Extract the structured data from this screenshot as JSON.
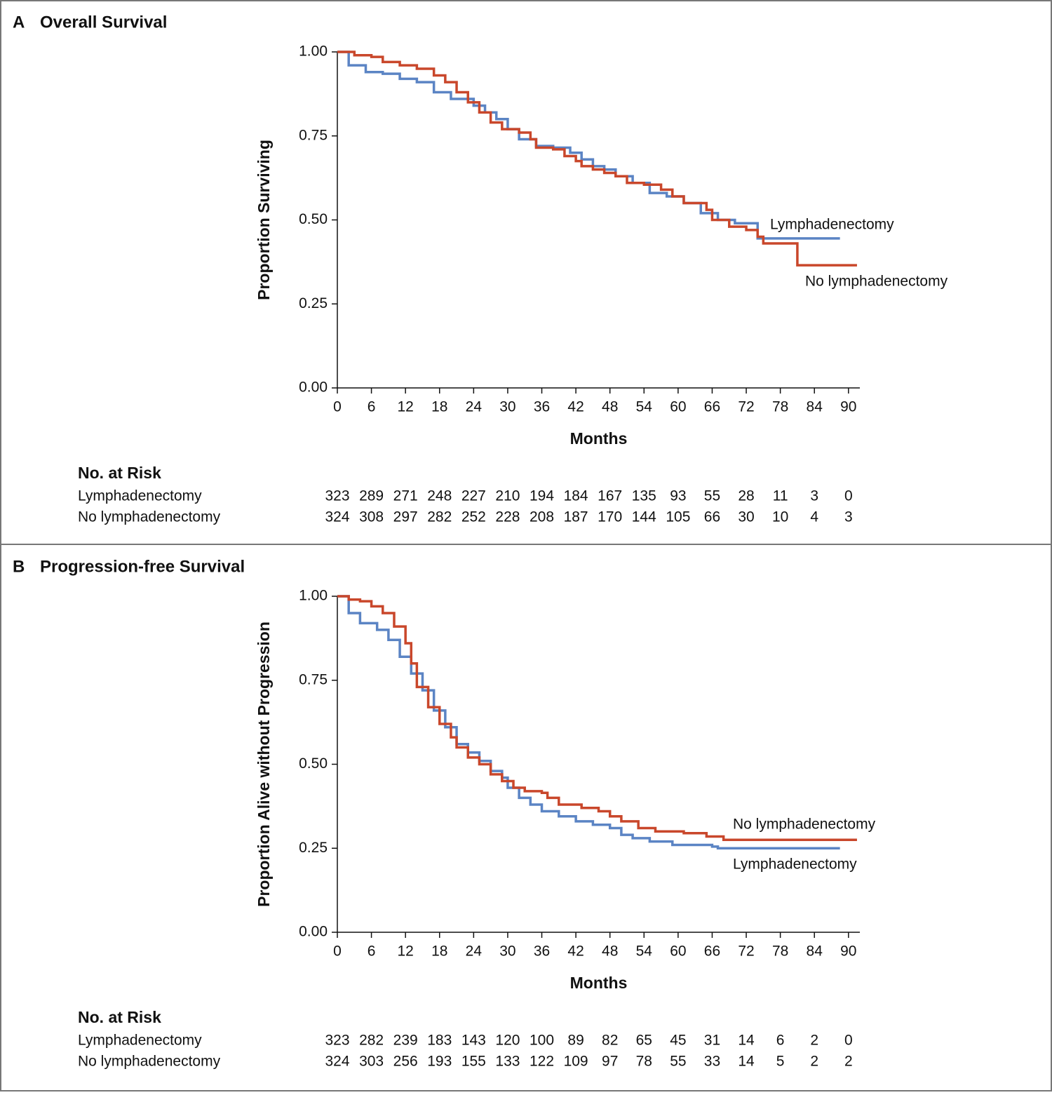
{
  "chart_data": [
    {
      "type": "line",
      "panel_label": "A",
      "title": "Overall Survival",
      "xlabel": "Months",
      "ylabel": "Proportion Surviving",
      "xlim": [
        0,
        92
      ],
      "ylim": [
        0,
        1
      ],
      "xticks": [
        0,
        6,
        12,
        18,
        24,
        30,
        36,
        42,
        48,
        54,
        60,
        66,
        72,
        78,
        84,
        90
      ],
      "yticks": [
        {
          "value": 0,
          "label": "0.00"
        },
        {
          "value": 0.25,
          "label": "0.25"
        },
        {
          "value": 0.5,
          "label": "0.50"
        },
        {
          "value": 0.75,
          "label": "0.75"
        },
        {
          "value": 1,
          "label": "1.00"
        }
      ],
      "series": [
        {
          "name": "Lymphadenectomy",
          "color": "#5b84c4",
          "x": [
            0,
            2,
            5,
            8,
            11,
            14,
            17,
            20,
            24,
            26,
            28,
            30,
            32,
            35,
            38,
            41,
            43,
            45,
            47,
            49,
            52,
            55,
            58,
            61,
            64,
            67,
            70,
            74,
            88.5
          ],
          "values": [
            1,
            0.96,
            0.94,
            0.935,
            0.92,
            0.91,
            0.88,
            0.86,
            0.84,
            0.82,
            0.8,
            0.77,
            0.74,
            0.72,
            0.715,
            0.7,
            0.68,
            0.66,
            0.65,
            0.63,
            0.61,
            0.58,
            0.57,
            0.55,
            0.52,
            0.5,
            0.49,
            0.445,
            0.445
          ]
        },
        {
          "name": "No lymphadenectomy",
          "color": "#c9472b",
          "x": [
            0,
            3,
            6,
            8,
            11,
            14,
            17,
            19,
            21,
            23,
            25,
            27,
            29,
            32,
            34,
            35,
            38,
            40,
            42,
            43,
            45,
            47,
            49,
            51,
            54,
            57,
            59,
            61,
            65,
            66,
            69,
            72,
            74,
            75,
            81,
            91.5
          ],
          "values": [
            1,
            0.99,
            0.985,
            0.97,
            0.96,
            0.95,
            0.93,
            0.91,
            0.88,
            0.85,
            0.82,
            0.79,
            0.77,
            0.76,
            0.74,
            0.715,
            0.71,
            0.69,
            0.675,
            0.66,
            0.65,
            0.64,
            0.63,
            0.61,
            0.605,
            0.59,
            0.57,
            0.55,
            0.53,
            0.5,
            0.48,
            0.47,
            0.45,
            0.43,
            0.365,
            0.365
          ]
        }
      ],
      "risk_table": {
        "title": "No. at Risk",
        "rows": [
          {
            "name": "Lymphadenectomy",
            "values": [
              323,
              289,
              271,
              248,
              227,
              210,
              194,
              184,
              167,
              135,
              93,
              55,
              28,
              11,
              3,
              0
            ]
          },
          {
            "name": "No lymphadenectomy",
            "values": [
              324,
              308,
              297,
              282,
              252,
              228,
              208,
              187,
              170,
              144,
              105,
              66,
              30,
              10,
              4,
              3
            ]
          }
        ]
      }
    },
    {
      "type": "line",
      "panel_label": "B",
      "title": "Progression-free Survival",
      "xlabel": "Months",
      "ylabel": "Proportion Alive without Progression",
      "xlim": [
        0,
        92
      ],
      "ylim": [
        0,
        1
      ],
      "xticks": [
        0,
        6,
        12,
        18,
        24,
        30,
        36,
        42,
        48,
        54,
        60,
        66,
        72,
        78,
        84,
        90
      ],
      "yticks": [
        {
          "value": 0,
          "label": "0.00"
        },
        {
          "value": 0.25,
          "label": "0.25"
        },
        {
          "value": 0.5,
          "label": "0.50"
        },
        {
          "value": 0.75,
          "label": "0.75"
        },
        {
          "value": 1,
          "label": "1.00"
        }
      ],
      "series": [
        {
          "name": "Lymphadenectomy",
          "color": "#5b84c4",
          "x": [
            0,
            2,
            4,
            7,
            9,
            11,
            13,
            15,
            17,
            19,
            21,
            23,
            25,
            27,
            29,
            30,
            32,
            34,
            36,
            39,
            42,
            45,
            48,
            50,
            52,
            55,
            59,
            66,
            67,
            88.5
          ],
          "values": [
            1,
            0.95,
            0.92,
            0.9,
            0.87,
            0.82,
            0.77,
            0.72,
            0.66,
            0.61,
            0.56,
            0.535,
            0.51,
            0.48,
            0.46,
            0.43,
            0.4,
            0.38,
            0.36,
            0.345,
            0.33,
            0.32,
            0.31,
            0.29,
            0.28,
            0.27,
            0.26,
            0.255,
            0.25,
            0.25
          ]
        },
        {
          "name": "No lymphadenectomy",
          "color": "#c9472b",
          "x": [
            0,
            2,
            4,
            6,
            8,
            10,
            12,
            13,
            14,
            16,
            18,
            20,
            21,
            23,
            25,
            27,
            29,
            31,
            33,
            36,
            37,
            39,
            43,
            46,
            48,
            50,
            53,
            56,
            61,
            65,
            68,
            91.5
          ],
          "values": [
            1,
            0.99,
            0.985,
            0.97,
            0.95,
            0.91,
            0.86,
            0.8,
            0.73,
            0.67,
            0.62,
            0.58,
            0.55,
            0.52,
            0.5,
            0.47,
            0.45,
            0.43,
            0.42,
            0.415,
            0.4,
            0.38,
            0.37,
            0.36,
            0.345,
            0.33,
            0.31,
            0.3,
            0.295,
            0.285,
            0.275,
            0.275
          ]
        }
      ],
      "risk_table": {
        "title": "No. at Risk",
        "rows": [
          {
            "name": "Lymphadenectomy",
            "values": [
              323,
              282,
              239,
              183,
              143,
              120,
              100,
              89,
              82,
              65,
              45,
              31,
              14,
              6,
              2,
              0
            ]
          },
          {
            "name": "No lymphadenectomy",
            "values": [
              324,
              303,
              256,
              193,
              155,
              133,
              122,
              109,
              97,
              78,
              55,
              33,
              14,
              5,
              2,
              2
            ]
          }
        ]
      }
    }
  ]
}
